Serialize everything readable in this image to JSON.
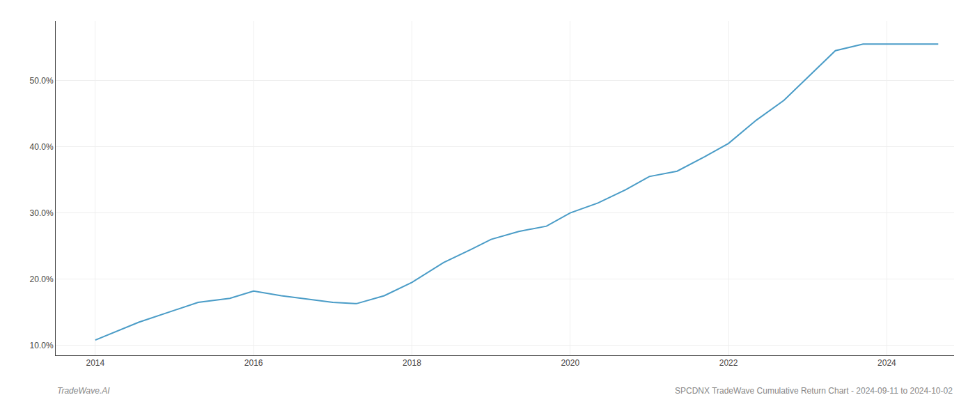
{
  "chart_data": {
    "type": "line",
    "x": [
      2014.0,
      2014.55,
      2015.0,
      2015.3,
      2015.7,
      2016.0,
      2016.35,
      2016.7,
      2017.0,
      2017.3,
      2017.65,
      2018.0,
      2018.4,
      2018.75,
      2019.0,
      2019.35,
      2019.7,
      2020.0,
      2020.35,
      2020.7,
      2021.0,
      2021.35,
      2021.7,
      2022.0,
      2022.35,
      2022.7,
      2023.0,
      2023.35,
      2023.7,
      2024.0,
      2024.35,
      2024.65
    ],
    "values": [
      10.8,
      13.5,
      15.3,
      16.5,
      17.1,
      18.2,
      17.5,
      17.0,
      16.5,
      16.3,
      17.5,
      19.5,
      22.5,
      24.5,
      26.0,
      27.2,
      28.0,
      30.0,
      31.5,
      33.5,
      35.5,
      36.3,
      38.5,
      40.5,
      44.0,
      47.0,
      50.5,
      54.5,
      55.5,
      55.5,
      55.5,
      55.5
    ],
    "color": "#4a9cc7",
    "xlim": [
      2013.5,
      2024.85
    ],
    "ylim": [
      8.5,
      59.0
    ],
    "xticks": [
      2014,
      2016,
      2018,
      2020,
      2022,
      2024
    ],
    "yticks": [
      {
        "value": 10.0,
        "label": "10.0%"
      },
      {
        "value": 20.0,
        "label": "20.0%"
      },
      {
        "value": 30.0,
        "label": "30.0%"
      },
      {
        "value": 40.0,
        "label": "40.0%"
      },
      {
        "value": 50.0,
        "label": "50.0%"
      }
    ],
    "grid": true,
    "annotations": [
      "TradeWave.AI",
      "SPCDNX TradeWave Cumulative Return Chart - 2024-09-11 to 2024-10-02"
    ]
  }
}
